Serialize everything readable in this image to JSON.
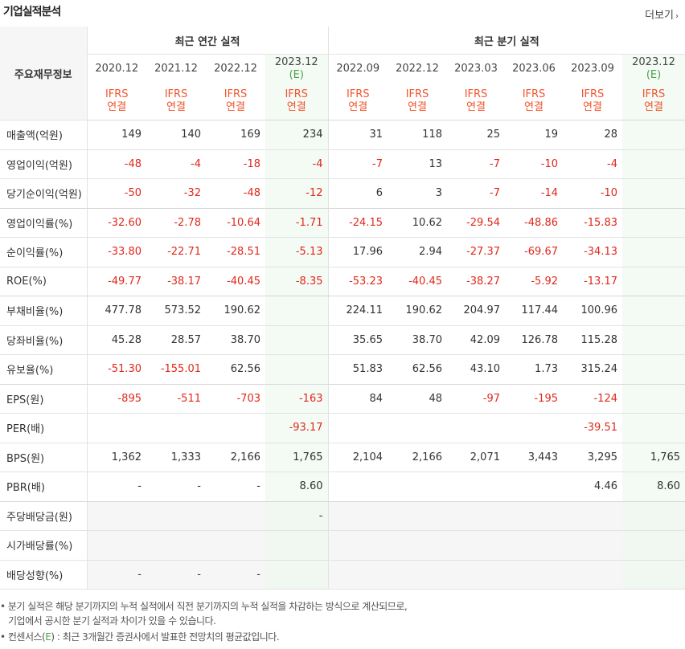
{
  "title": "기업실적분석",
  "more_label": "더보기",
  "header": {
    "main_label": "주요재무정보",
    "annual_label": "최근 연간 실적",
    "quarter_label": "최근 분기 실적",
    "annual_periods": [
      "2020.12",
      "2021.12",
      "2022.12",
      "2023.12"
    ],
    "annual_est_mark": "(E)",
    "quarter_periods": [
      "2022.09",
      "2022.12",
      "2023.03",
      "2023.06",
      "2023.09",
      "2023.12"
    ],
    "quarter_est_mark": "(E)",
    "ifrs": "IFRS",
    "basis": "연결"
  },
  "rows": [
    {
      "label": "매출액(억원)",
      "values": [
        "149",
        "140",
        "169",
        "234",
        "31",
        "118",
        "25",
        "19",
        "28",
        ""
      ]
    },
    {
      "label": "영업이익(억원)",
      "values": [
        "-48",
        "-4",
        "-18",
        "-4",
        "-7",
        "13",
        "-7",
        "-10",
        "-4",
        ""
      ]
    },
    {
      "label": "당기순이익(억원)",
      "values": [
        "-50",
        "-32",
        "-48",
        "-12",
        "6",
        "3",
        "-7",
        "-14",
        "-10",
        ""
      ]
    },
    {
      "label": "영업이익률(%)",
      "values": [
        "-32.60",
        "-2.78",
        "-10.64",
        "-1.71",
        "-24.15",
        "10.62",
        "-29.54",
        "-48.86",
        "-15.83",
        ""
      ]
    },
    {
      "label": "순이익률(%)",
      "values": [
        "-33.80",
        "-22.71",
        "-28.51",
        "-5.13",
        "17.96",
        "2.94",
        "-27.37",
        "-69.67",
        "-34.13",
        ""
      ]
    },
    {
      "label": "ROE(%)",
      "values": [
        "-49.77",
        "-38.17",
        "-40.45",
        "-8.35",
        "-53.23",
        "-40.45",
        "-38.27",
        "-5.92",
        "-13.17",
        ""
      ]
    },
    {
      "label": "부채비율(%)",
      "values": [
        "477.78",
        "573.52",
        "190.62",
        "",
        "224.11",
        "190.62",
        "204.97",
        "117.44",
        "100.96",
        ""
      ]
    },
    {
      "label": "당좌비율(%)",
      "values": [
        "45.28",
        "28.57",
        "38.70",
        "",
        "35.65",
        "38.70",
        "42.09",
        "126.78",
        "115.28",
        ""
      ]
    },
    {
      "label": "유보율(%)",
      "values": [
        "-51.30",
        "-155.01",
        "62.56",
        "",
        "51.83",
        "62.56",
        "43.10",
        "1.73",
        "315.24",
        ""
      ]
    },
    {
      "label": "EPS(원)",
      "values": [
        "-895",
        "-511",
        "-703",
        "-163",
        "84",
        "48",
        "-97",
        "-195",
        "-124",
        ""
      ]
    },
    {
      "label": "PER(배)",
      "values": [
        "",
        "",
        "",
        "-93.17",
        "",
        "",
        "",
        "",
        "-39.51",
        ""
      ]
    },
    {
      "label": "BPS(원)",
      "values": [
        "1,362",
        "1,333",
        "2,166",
        "1,765",
        "2,104",
        "2,166",
        "2,071",
        "3,443",
        "3,295",
        "1,765"
      ]
    },
    {
      "label": "PBR(배)",
      "values": [
        "-",
        "-",
        "-",
        "8.60",
        "",
        "",
        "",
        "",
        "4.46",
        "8.60"
      ]
    },
    {
      "label": "주당배당금(원)",
      "values": [
        "",
        "",
        "",
        "-",
        "",
        "",
        "",
        "",
        "",
        ""
      ]
    },
    {
      "label": "시가배당률(%)",
      "values": [
        "",
        "",
        "",
        "",
        "",
        "",
        "",
        "",
        "",
        ""
      ]
    },
    {
      "label": "배당성향(%)",
      "values": [
        "-",
        "-",
        "-",
        "",
        "",
        "",
        "",
        "",
        "",
        ""
      ]
    }
  ],
  "notes": {
    "note1_line1": "• 분기 실적은 해당 분기까지의 누적 실적에서 직전 분기까지의 누적 실적을 차감하는 방식으로 계산되므로,",
    "note1_line2": "기업에서 공시한 분기 실적과 차이가 있을 수 있습니다.",
    "note2_prefix": "• 컨센서스(",
    "note2_e": "E",
    "note2_suffix": ") : 최근 3개월간 증권사에서 발표한 전망치의 평균값입니다."
  },
  "colors": {
    "negative": "#e0281b",
    "ifrs": "#f2542d",
    "estimate": "#4aa44a"
  }
}
